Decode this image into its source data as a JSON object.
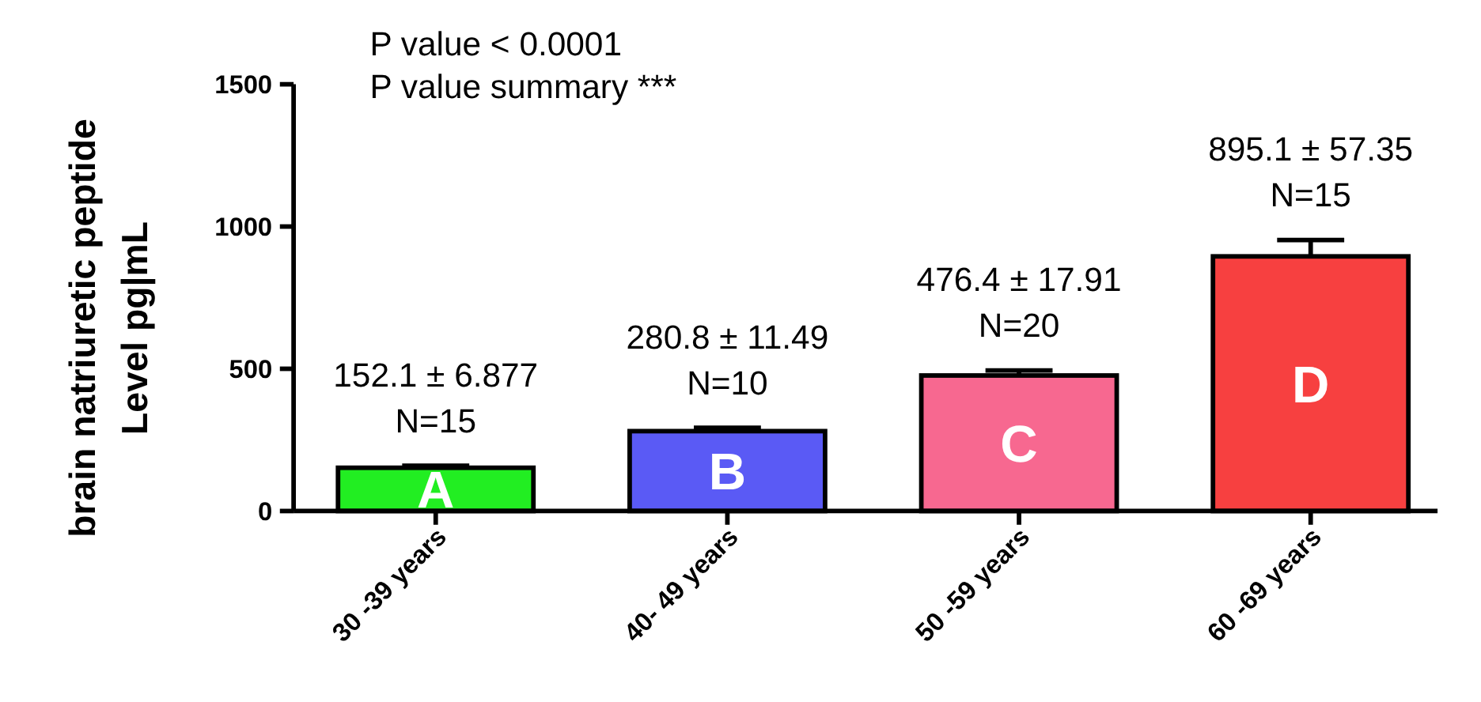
{
  "chart_data": {
    "type": "bar",
    "ylabel": "brain natriuretic peptide\nLevel pg|mL",
    "categories": [
      "30 -39 years",
      "40- 49 years",
      "50 -59 years",
      "60 -69 years"
    ],
    "values": [
      152.1,
      280.8,
      476.4,
      895.1
    ],
    "errors": [
      6.877,
      11.49,
      17.91,
      57.35
    ],
    "colors": [
      "#22ee22",
      "#5a5af5",
      "#f76890",
      "#f74040"
    ],
    "value_labels": [
      "152.1 ± 6.877\nN=15",
      "280.8 ± 11.49\nN=10",
      "476.4 ± 17.91\nN=20",
      "895.1 ± 57.35\nN=15"
    ],
    "ylim": [
      0,
      1500
    ],
    "yticks": [
      0,
      500,
      1000,
      1500
    ],
    "grid": false,
    "annotations": [
      "P value < 0.0001",
      "P value summary ***",
      {
        "text": "A",
        "x": "30 -39 years",
        "y": 152.1
      },
      {
        "text": "B",
        "x": "40- 49 years",
        "y": 280.8
      },
      {
        "text": "C",
        "x": "50 -59 years",
        "y": 476.4
      },
      {
        "text": "D",
        "x": "60 -69 years",
        "y": 895.1
      }
    ]
  }
}
